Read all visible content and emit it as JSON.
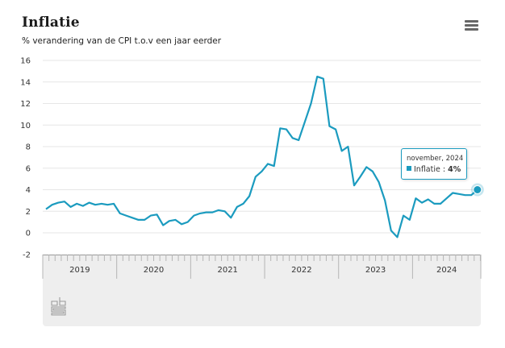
{
  "header": {
    "title": "Inflatie",
    "subtitle": "% verandering van de CPI t.o.v een jaar eerder",
    "menu_icon": "hamburger-menu-icon"
  },
  "tooltip": {
    "date": "november, 2024",
    "series": "Inflatie",
    "separator": " : ",
    "value": "4%"
  },
  "navigator": {
    "logo": "cbs-logo-icon"
  },
  "colors": {
    "line": "#1b9bbf",
    "grid": "#e6e6e6",
    "navigator_bg": "#eeeeee"
  },
  "chart_data": {
    "type": "line",
    "title": "Inflatie",
    "subtitle": "% verandering van de CPI t.o.v een jaar eerder",
    "xlabel": "",
    "ylabel": "",
    "ylim": [
      -2,
      16
    ],
    "yticks": [
      "-2",
      "0",
      "2",
      "4",
      "6",
      "8",
      "10",
      "12",
      "14",
      "16"
    ],
    "grid": true,
    "legend": "none",
    "x_start": "2019-01",
    "x_end": "2024-11",
    "year_labels": [
      "2019",
      "2020",
      "2021",
      "2022",
      "2023",
      "2024"
    ],
    "series": [
      {
        "name": "Inflatie",
        "values": [
          2.2,
          2.6,
          2.8,
          2.9,
          2.4,
          2.7,
          2.5,
          2.8,
          2.6,
          2.7,
          2.6,
          2.7,
          1.8,
          1.6,
          1.4,
          1.2,
          1.2,
          1.6,
          1.7,
          0.7,
          1.1,
          1.2,
          0.8,
          1.0,
          1.6,
          1.8,
          1.9,
          1.9,
          2.1,
          2.0,
          1.4,
          2.4,
          2.7,
          3.4,
          5.2,
          5.7,
          6.4,
          6.2,
          9.7,
          9.6,
          8.8,
          8.6,
          10.3,
          12.0,
          14.5,
          14.3,
          9.9,
          9.6,
          7.6,
          8.0,
          4.4,
          5.2,
          6.1,
          5.7,
          4.7,
          3.0,
          0.2,
          -0.4,
          1.6,
          1.2,
          3.2,
          2.8,
          3.1,
          2.7,
          2.7,
          3.2,
          3.7,
          3.6,
          3.5,
          3.5,
          4.0
        ]
      }
    ],
    "highlighted_point": {
      "x": "2024-11",
      "y": 4.0
    }
  }
}
